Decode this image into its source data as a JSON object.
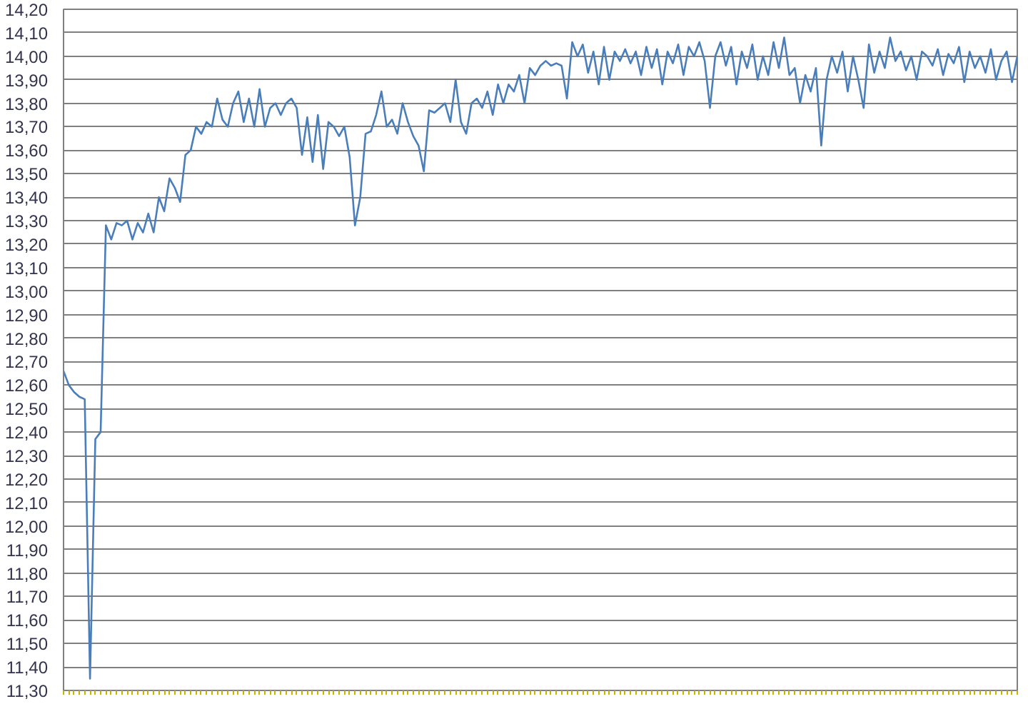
{
  "chart_data": {
    "type": "line",
    "tick_labels": "y",
    "grid": "y",
    "marker": "none",
    "line_style": "solid",
    "categories": [
      null,
      null,
      null,
      null,
      null,
      null,
      null,
      null,
      null,
      null,
      null,
      null,
      null,
      null,
      null,
      null,
      null,
      null,
      null,
      null,
      null,
      null,
      null,
      null,
      null,
      null,
      null,
      null,
      null,
      null,
      null,
      null,
      null,
      null,
      null,
      null,
      null,
      null,
      null,
      null,
      null,
      null,
      null,
      null,
      null,
      null,
      null,
      null,
      null,
      null,
      null,
      null,
      null,
      null,
      null,
      null,
      null,
      null,
      null,
      null,
      null,
      null,
      null,
      null,
      null,
      null,
      null,
      null,
      null,
      null,
      null,
      null,
      null,
      null,
      null,
      null,
      null,
      null,
      null,
      null,
      null,
      null,
      null,
      null,
      null,
      null,
      null,
      null,
      null,
      null,
      null,
      null,
      null,
      null,
      null,
      null,
      null,
      null,
      null,
      null,
      null,
      null,
      null,
      null,
      null,
      null,
      null,
      null,
      null,
      null,
      null,
      null,
      null,
      null,
      null,
      null,
      null,
      null,
      null,
      null,
      null,
      null,
      null,
      null,
      null,
      null,
      null,
      null,
      null,
      null,
      null,
      null,
      null,
      null,
      null,
      null,
      null,
      null,
      null,
      null,
      null,
      null,
      null,
      null,
      null,
      null,
      null,
      null,
      null,
      null,
      null,
      null,
      null,
      null,
      null,
      null,
      null,
      null,
      null,
      null,
      null,
      null,
      null,
      null,
      null,
      null,
      null,
      null,
      null,
      null,
      null,
      null,
      null,
      null,
      null,
      null,
      null,
      null,
      null,
      null,
      null
    ],
    "series": [
      {
        "color": "#4a7ebb",
        "values": [
          12.66,
          12.6,
          12.57,
          12.55,
          12.54,
          11.35,
          12.37,
          12.4,
          13.28,
          13.22,
          13.29,
          13.28,
          13.3,
          13.22,
          13.29,
          13.25,
          13.33,
          13.25,
          13.4,
          13.34,
          13.48,
          13.44,
          13.38,
          13.58,
          13.6,
          13.7,
          13.67,
          13.72,
          13.7,
          13.82,
          13.73,
          13.7,
          13.8,
          13.85,
          13.72,
          13.82,
          13.7,
          13.86,
          13.7,
          13.78,
          13.8,
          13.75,
          13.8,
          13.82,
          13.78,
          13.58,
          13.74,
          13.55,
          13.75,
          13.52,
          13.72,
          13.7,
          13.66,
          13.7,
          13.57,
          13.28,
          13.4,
          13.67,
          13.68,
          13.75,
          13.85,
          13.7,
          13.73,
          13.67,
          13.8,
          13.72,
          13.66,
          13.62,
          13.51,
          13.77,
          13.76,
          13.78,
          13.8,
          13.72,
          13.9,
          13.72,
          13.67,
          13.8,
          13.82,
          13.78,
          13.85,
          13.75,
          13.88,
          13.8,
          13.88,
          13.85,
          13.92,
          13.8,
          13.95,
          13.92,
          13.96,
          13.98,
          13.96,
          13.97,
          13.96,
          13.82,
          14.06,
          14.0,
          14.05,
          13.93,
          14.02,
          13.88,
          14.04,
          13.9,
          14.02,
          13.98,
          14.03,
          13.97,
          14.02,
          13.92,
          14.04,
          13.95,
          14.03,
          13.88,
          14.02,
          13.97,
          14.05,
          13.92,
          14.04,
          14.0,
          14.06,
          13.98,
          13.78,
          14.0,
          14.06,
          13.96,
          14.04,
          13.88,
          14.02,
          13.95,
          14.05,
          13.9,
          14.0,
          13.92,
          14.06,
          13.95,
          14.08,
          13.92,
          13.95,
          13.8,
          13.92,
          13.85,
          13.95,
          13.62,
          13.9,
          14.0,
          13.93,
          14.02,
          13.85,
          14.0,
          13.9,
          13.78,
          14.05,
          13.93,
          14.02,
          13.95,
          14.08,
          13.98,
          14.02,
          13.94,
          14.0,
          13.9,
          14.02,
          14.0,
          13.96,
          14.03,
          13.92,
          14.01,
          13.97,
          14.04,
          13.89,
          14.02,
          13.95,
          14.0,
          13.93,
          14.03,
          13.9,
          13.98,
          14.02,
          13.89,
          14.0
        ]
      }
    ],
    "ylim": [
      11.3,
      14.2
    ],
    "yticks": [
      {
        "value": 11.3,
        "label": "11,30"
      },
      {
        "value": 11.4,
        "label": "11,40"
      },
      {
        "value": 11.5,
        "label": "11,50"
      },
      {
        "value": 11.6,
        "label": "11,60"
      },
      {
        "value": 11.7,
        "label": "11,70"
      },
      {
        "value": 11.8,
        "label": "11,80"
      },
      {
        "value": 11.9,
        "label": "11,90"
      },
      {
        "value": 12.0,
        "label": "12,00"
      },
      {
        "value": 12.1,
        "label": "12,10"
      },
      {
        "value": 12.2,
        "label": "12,20"
      },
      {
        "value": 12.3,
        "label": "12,30"
      },
      {
        "value": 12.4,
        "label": "12,40"
      },
      {
        "value": 12.5,
        "label": "12,50"
      },
      {
        "value": 12.6,
        "label": "12,60"
      },
      {
        "value": 12.7,
        "label": "12,70"
      },
      {
        "value": 12.8,
        "label": "12,80"
      },
      {
        "value": 12.9,
        "label": "12,90"
      },
      {
        "value": 13.0,
        "label": "13,00"
      },
      {
        "value": 13.1,
        "label": "13,10"
      },
      {
        "value": 13.2,
        "label": "13,20"
      },
      {
        "value": 13.3,
        "label": "13,30"
      },
      {
        "value": 13.4,
        "label": "13,40"
      },
      {
        "value": 13.5,
        "label": "13,50"
      },
      {
        "value": 13.6,
        "label": "13,60"
      },
      {
        "value": 13.7,
        "label": "13,70"
      },
      {
        "value": 13.8,
        "label": "13,80"
      },
      {
        "value": 13.9,
        "label": "13,90"
      },
      {
        "value": 14.0,
        "label": "14,00"
      },
      {
        "value": 14.1,
        "label": "14,10"
      },
      {
        "value": 14.2,
        "label": "14,20"
      }
    ]
  }
}
